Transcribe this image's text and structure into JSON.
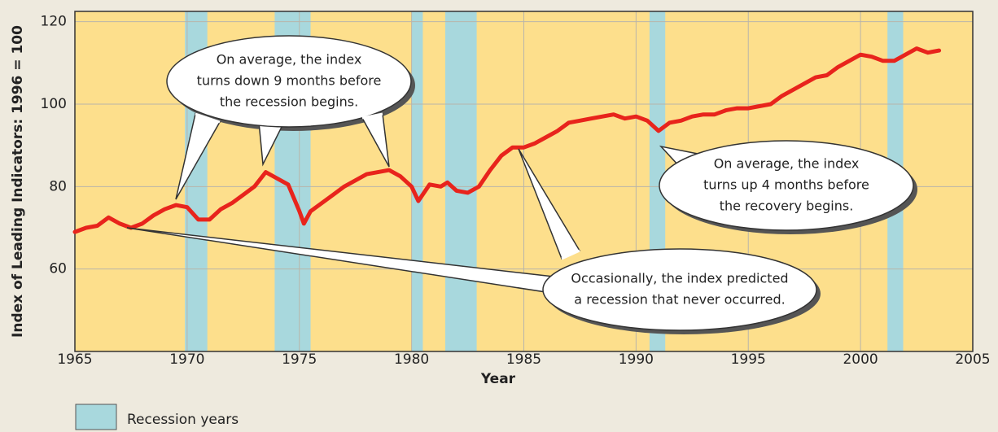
{
  "chart_data": {
    "type": "line",
    "xlabel": "Year",
    "ylabel": "Index of Leading Indicators: 1996 = 100",
    "xlim": [
      1965,
      2005
    ],
    "xticks": [
      1965,
      1970,
      1975,
      1980,
      1985,
      1990,
      1995,
      2000,
      2005
    ],
    "ylim": [
      40,
      122.5
    ],
    "yticks": [
      60,
      80,
      100,
      120
    ],
    "grid": true,
    "x": [
      1965.0,
      1965.5,
      1966.0,
      1966.5,
      1967.0,
      1967.5,
      1968.0,
      1968.5,
      1969.0,
      1969.5,
      1970.0,
      1970.5,
      1971.0,
      1971.5,
      1972.0,
      1972.5,
      1973.0,
      1973.5,
      1974.0,
      1974.5,
      1975.0,
      1975.2,
      1975.5,
      1976.0,
      1976.5,
      1977.0,
      1977.5,
      1978.0,
      1978.5,
      1979.0,
      1979.5,
      1980.0,
      1980.3,
      1980.8,
      1981.3,
      1981.6,
      1982.0,
      1982.5,
      1983.0,
      1983.5,
      1984.0,
      1984.5,
      1985.0,
      1985.5,
      1986.0,
      1986.5,
      1987.0,
      1987.5,
      1988.0,
      1988.5,
      1989.0,
      1989.5,
      1990.0,
      1990.5,
      1991.0,
      1991.5,
      1992.0,
      1992.5,
      1993.0,
      1993.5,
      1994.0,
      1994.5,
      1995.0,
      1995.5,
      1996.0,
      1996.5,
      1997.0,
      1997.5,
      1998.0,
      1998.5,
      1999.0,
      1999.5,
      2000.0,
      2000.5,
      2001.0,
      2001.5,
      2002.0,
      2002.5,
      2003.0,
      2003.5
    ],
    "series": [
      {
        "color": "#e8241c",
        "values": [
          69,
          70,
          70.5,
          72.5,
          71,
          70,
          71,
          73,
          74.5,
          75.5,
          75,
          72,
          72,
          74.5,
          76,
          78,
          80,
          83.5,
          82,
          80.5,
          74,
          71,
          74,
          76,
          78,
          80,
          81.5,
          83,
          83.5,
          84,
          82.5,
          80,
          76.5,
          80.5,
          80,
          81,
          79,
          78.5,
          80,
          84,
          87.5,
          89.5,
          89.5,
          90.5,
          92,
          93.5,
          95.5,
          96,
          96.5,
          97,
          97.5,
          96.5,
          97,
          96,
          93.5,
          95.5,
          96,
          97,
          97.5,
          97.5,
          98.5,
          99,
          99,
          99.5,
          100,
          102,
          103.5,
          105,
          106.5,
          107,
          109,
          110.5,
          112,
          111.5,
          110.5,
          110.5,
          112,
          113.5,
          112.5,
          113
        ]
      }
    ],
    "recessions": {
      "name": "Recession years",
      "color": "#a8d8dd",
      "periods": [
        [
          1969.9,
          1970.9
        ],
        [
          1973.9,
          1975.5
        ],
        [
          1980.0,
          1980.5
        ],
        [
          1981.5,
          1982.9
        ],
        [
          1990.6,
          1991.3
        ],
        [
          2001.2,
          2001.9
        ]
      ]
    },
    "annotations": [
      {
        "lines": [
          "On average, the index",
          "turns down 9 months before",
          "the recession begins."
        ]
      },
      {
        "lines": [
          "On average, the index",
          "turns up 4 months before",
          "the recovery begins."
        ]
      },
      {
        "lines": [
          "Occasionally, the index predicted",
          "a recession that never occurred."
        ]
      }
    ]
  }
}
